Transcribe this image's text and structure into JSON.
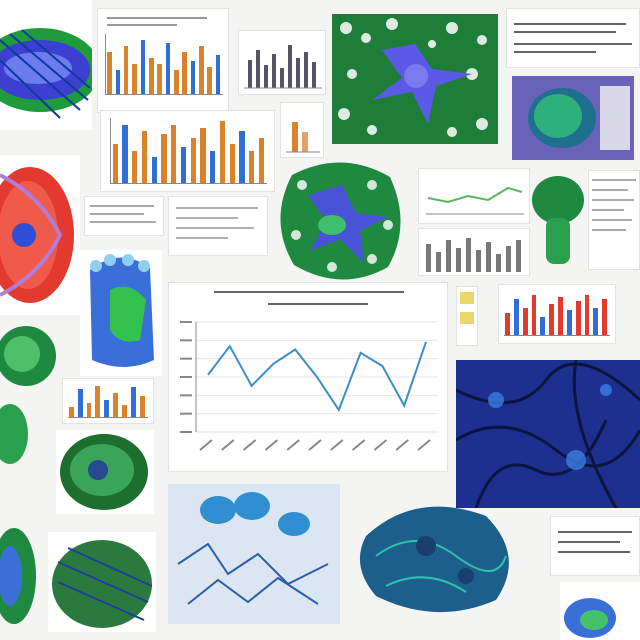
{
  "collage": {
    "palette": {
      "primary": "#2f4fd6",
      "secondary": "#21a84a",
      "accent_red": "#e23a2e",
      "bar_orange": "#d9822b",
      "line_blue": "#3a8fc9",
      "navy": "#1d2f8f"
    },
    "central_chart": {
      "type": "line",
      "n_points": 11,
      "values": [
        0.52,
        0.78,
        0.42,
        0.62,
        0.75,
        0.5,
        0.2,
        0.72,
        0.6,
        0.24,
        0.82
      ]
    },
    "mini_bar_charts": [
      {
        "name": "top-left-bars",
        "values": [
          0.7,
          0.4,
          0.8,
          0.5,
          0.9,
          0.6,
          0.5,
          0.85,
          0.4,
          0.7,
          0.55,
          0.8,
          0.45,
          0.65
        ]
      },
      {
        "name": "mid-left-bars",
        "values": [
          0.6,
          0.9,
          0.5,
          0.8,
          0.4,
          0.75,
          0.9,
          0.55,
          0.7,
          0.85,
          0.5,
          0.95,
          0.6,
          0.8,
          0.5,
          0.7
        ]
      },
      {
        "name": "right-red-bars",
        "values": [
          0.5,
          0.8,
          0.6,
          0.9,
          0.4,
          0.7,
          0.85,
          0.55,
          0.75,
          0.9,
          0.6,
          0.8
        ]
      },
      {
        "name": "left-small-bars",
        "values": [
          0.3,
          0.8,
          0.4,
          0.9,
          0.5,
          0.7,
          0.35,
          0.85,
          0.6
        ]
      }
    ]
  }
}
